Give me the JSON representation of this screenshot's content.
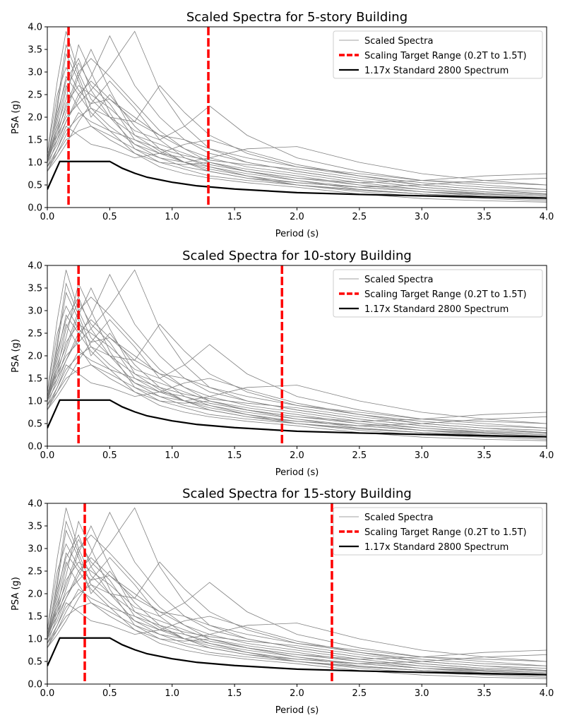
{
  "chart_data": [
    {
      "type": "line",
      "title": "Scaled Spectra for 5-story Building",
      "xlabel": "Period (s)",
      "ylabel": "PSA (g)",
      "xlim": [
        0,
        4
      ],
      "ylim": [
        0,
        4
      ],
      "xticks": [
        "0.0",
        "0.5",
        "1.0",
        "1.5",
        "2.0",
        "2.5",
        "3.0",
        "3.5",
        "4.0"
      ],
      "yticks": [
        "0.0",
        "0.5",
        "1.0",
        "1.5",
        "2.0",
        "2.5",
        "3.0",
        "3.5",
        "4.0"
      ],
      "target_range": [
        0.17,
        1.29
      ],
      "legend": [
        "Scaled Spectra",
        "Scaling Target Range (0.2T to 1.5T)",
        "1.17x Standard 2800 Spectrum"
      ],
      "legend_position": "top-right",
      "grid": false
    },
    {
      "type": "line",
      "title": "Scaled Spectra for 10-story Building",
      "xlabel": "Period (s)",
      "ylabel": "PSA (g)",
      "xlim": [
        0,
        4
      ],
      "ylim": [
        0,
        4
      ],
      "xticks": [
        "0.0",
        "0.5",
        "1.0",
        "1.5",
        "2.0",
        "2.5",
        "3.0",
        "3.5",
        "4.0"
      ],
      "yticks": [
        "0.0",
        "0.5",
        "1.0",
        "1.5",
        "2.0",
        "2.5",
        "3.0",
        "3.5",
        "4.0"
      ],
      "target_range": [
        0.25,
        1.88
      ],
      "legend": [
        "Scaled Spectra",
        "Scaling Target Range (0.2T to 1.5T)",
        "1.17x Standard 2800 Spectrum"
      ],
      "legend_position": "top-right",
      "grid": false
    },
    {
      "type": "line",
      "title": "Scaled Spectra for 15-story Building",
      "xlabel": "Period (s)",
      "ylabel": "PSA (g)",
      "xlim": [
        0,
        4
      ],
      "ylim": [
        0,
        4
      ],
      "xticks": [
        "0.0",
        "0.5",
        "1.0",
        "1.5",
        "2.0",
        "2.5",
        "3.0",
        "3.5",
        "4.0"
      ],
      "yticks": [
        "0.0",
        "0.5",
        "1.0",
        "1.5",
        "2.0",
        "2.5",
        "3.0",
        "3.5",
        "4.0"
      ],
      "target_range": [
        0.3,
        2.28
      ],
      "legend": [
        "Scaled Spectra",
        "Scaling Target Range (0.2T to 1.5T)",
        "1.17x Standard 2800 Spectrum"
      ],
      "legend_position": "top-right",
      "grid": false
    }
  ],
  "design_spectrum": {
    "x": [
      0,
      0.1,
      0.15,
      0.2,
      0.3,
      0.4,
      0.5,
      0.6,
      0.7,
      0.8,
      1.0,
      1.2,
      1.5,
      2.0,
      2.5,
      3.0,
      3.5,
      4.0
    ],
    "y": [
      0.4,
      1.02,
      1.02,
      1.02,
      1.02,
      1.02,
      1.02,
      0.87,
      0.76,
      0.67,
      0.56,
      0.48,
      0.41,
      0.33,
      0.29,
      0.26,
      0.23,
      0.21
    ]
  },
  "ground_motion_spectra": [
    {
      "x": [
        0,
        0.08,
        0.15,
        0.25,
        0.35,
        0.5,
        0.7,
        0.9,
        1.1,
        1.3,
        1.6,
        2.0,
        2.5,
        3.0,
        3.5,
        4.0
      ],
      "y": [
        1.0,
        1.7,
        2.6,
        3.2,
        2.7,
        2.3,
        1.5,
        1.2,
        1.1,
        0.9,
        0.75,
        0.6,
        0.45,
        0.35,
        0.3,
        0.25
      ]
    },
    {
      "x": [
        0,
        0.08,
        0.15,
        0.25,
        0.35,
        0.5,
        0.7,
        0.9,
        1.1,
        1.3,
        1.6,
        2.0,
        2.5,
        3.0,
        3.5,
        4.0
      ],
      "y": [
        1.1,
        2.2,
        3.4,
        2.8,
        2.0,
        2.5,
        1.8,
        1.3,
        1.0,
        0.85,
        0.7,
        0.5,
        0.4,
        0.3,
        0.25,
        0.2
      ]
    },
    {
      "x": [
        0,
        0.08,
        0.15,
        0.25,
        0.35,
        0.5,
        0.7,
        0.9,
        1.1,
        1.3,
        1.6,
        2.0,
        2.5,
        3.0,
        3.5,
        4.0
      ],
      "y": [
        0.9,
        1.5,
        2.1,
        2.9,
        3.5,
        2.6,
        1.6,
        1.4,
        1.2,
        1.0,
        0.8,
        0.65,
        0.5,
        0.4,
        0.32,
        0.28
      ]
    },
    {
      "x": [
        0,
        0.08,
        0.15,
        0.25,
        0.35,
        0.5,
        0.7,
        0.9,
        1.1,
        1.3,
        1.6,
        2.0,
        2.5,
        3.0,
        3.5,
        4.0
      ],
      "y": [
        1.2,
        2.8,
        3.9,
        3.0,
        2.4,
        2.0,
        1.4,
        1.1,
        0.9,
        0.8,
        0.65,
        0.55,
        0.45,
        0.35,
        0.28,
        0.22
      ]
    },
    {
      "x": [
        0,
        0.08,
        0.15,
        0.25,
        0.35,
        0.5,
        0.7,
        0.9,
        1.1,
        1.3,
        1.6,
        2.0,
        2.5,
        3.0,
        3.5,
        4.0
      ],
      "y": [
        1.0,
        1.4,
        1.9,
        2.4,
        2.9,
        3.8,
        2.7,
        2.0,
        1.5,
        1.2,
        1.0,
        0.8,
        0.6,
        0.45,
        0.35,
        0.3
      ]
    },
    {
      "x": [
        0,
        0.08,
        0.15,
        0.25,
        0.35,
        0.5,
        0.7,
        0.9,
        1.1,
        1.3,
        1.6,
        2.0,
        2.5,
        3.0,
        3.5,
        4.0
      ],
      "y": [
        0.8,
        1.3,
        1.7,
        2.0,
        2.2,
        2.0,
        1.9,
        2.7,
        2.1,
        1.6,
        1.2,
        0.9,
        0.7,
        0.5,
        0.4,
        0.35
      ]
    },
    {
      "x": [
        0,
        0.08,
        0.15,
        0.25,
        0.35,
        0.5,
        0.7,
        0.9,
        1.1,
        1.3,
        1.6,
        2.0,
        2.5,
        3.0,
        3.5,
        4.0
      ],
      "y": [
        1.0,
        1.6,
        2.3,
        2.7,
        2.5,
        2.2,
        1.7,
        1.5,
        1.8,
        2.25,
        1.6,
        1.1,
        0.8,
        0.6,
        0.5,
        0.4
      ]
    },
    {
      "x": [
        0,
        0.08,
        0.15,
        0.25,
        0.35,
        0.5,
        0.7,
        0.9,
        1.1,
        1.3,
        1.6,
        2.0,
        2.5,
        3.0,
        3.5,
        4.0
      ],
      "y": [
        0.9,
        1.2,
        1.5,
        1.7,
        1.8,
        1.6,
        1.3,
        1.1,
        1.0,
        1.1,
        1.3,
        1.35,
        1.0,
        0.75,
        0.6,
        0.5
      ]
    },
    {
      "x": [
        0,
        0.08,
        0.15,
        0.25,
        0.35,
        0.5,
        0.7,
        0.9,
        1.1,
        1.3,
        1.6,
        2.0,
        2.5,
        3.0,
        3.5,
        4.0
      ],
      "y": [
        1.1,
        2.0,
        2.9,
        2.5,
        2.1,
        1.7,
        1.2,
        0.9,
        0.75,
        0.65,
        0.55,
        0.45,
        0.3,
        0.2,
        0.15,
        0.12
      ]
    },
    {
      "x": [
        0,
        0.08,
        0.15,
        0.25,
        0.35,
        0.5,
        0.7,
        0.9,
        1.1,
        1.3,
        1.6,
        2.0,
        2.5,
        3.0,
        3.5,
        4.0
      ],
      "y": [
        1.0,
        1.8,
        2.4,
        3.6,
        3.0,
        2.1,
        1.3,
        1.0,
        0.85,
        0.7,
        0.6,
        0.5,
        0.35,
        0.25,
        0.2,
        0.15
      ]
    },
    {
      "x": [
        0,
        0.08,
        0.15,
        0.25,
        0.35,
        0.5,
        0.7,
        0.9,
        1.1,
        1.3,
        1.6,
        2.0,
        2.5,
        3.0,
        3.5,
        4.0
      ],
      "y": [
        1.2,
        2.5,
        3.1,
        2.6,
        2.3,
        2.4,
        2.0,
        1.6,
        1.3,
        1.1,
        0.9,
        0.75,
        0.55,
        0.4,
        0.3,
        0.25
      ]
    },
    {
      "x": [
        0,
        0.08,
        0.15,
        0.25,
        0.35,
        0.5,
        0.7,
        0.9,
        1.1,
        1.3,
        1.6,
        2.0,
        2.5,
        3.0,
        3.5,
        4.0
      ],
      "y": [
        0.8,
        1.1,
        1.4,
        1.9,
        2.3,
        2.8,
        2.2,
        1.5,
        1.1,
        0.95,
        0.8,
        0.65,
        0.55,
        0.6,
        0.7,
        0.75
      ]
    },
    {
      "x": [
        0,
        0.08,
        0.15,
        0.25,
        0.35,
        0.5,
        0.7,
        0.9,
        1.1,
        1.3,
        1.6,
        2.0,
        2.5,
        3.0,
        3.5,
        4.0
      ],
      "y": [
        1.0,
        1.9,
        2.7,
        2.2,
        1.8,
        1.5,
        1.2,
        1.0,
        0.95,
        1.0,
        0.85,
        0.7,
        0.5,
        0.35,
        0.25,
        0.2
      ]
    },
    {
      "x": [
        0,
        0.08,
        0.15,
        0.25,
        0.35,
        0.5,
        0.7,
        0.9,
        1.1,
        1.3,
        1.6,
        2.0,
        2.5,
        3.0,
        3.5,
        4.0
      ],
      "y": [
        1.1,
        1.7,
        2.2,
        3.0,
        3.3,
        2.9,
        2.3,
        1.7,
        1.3,
        1.0,
        0.8,
        0.6,
        0.4,
        0.3,
        0.22,
        0.18
      ]
    },
    {
      "x": [
        0,
        0.08,
        0.15,
        0.25,
        0.35,
        0.5,
        0.7,
        0.9,
        1.1,
        1.3,
        1.6,
        2.0,
        2.5,
        3.0,
        3.5,
        4.0
      ],
      "y": [
        0.9,
        1.3,
        1.8,
        1.6,
        1.4,
        1.3,
        1.1,
        1.2,
        1.4,
        1.5,
        1.25,
        0.95,
        0.7,
        0.55,
        0.45,
        0.4
      ]
    },
    {
      "x": [
        0,
        0.08,
        0.15,
        0.25,
        0.35,
        0.5,
        0.7,
        0.9,
        1.1,
        1.3,
        1.6,
        2.0,
        2.5,
        3.0,
        3.5,
        4.0
      ],
      "y": [
        1.0,
        2.3,
        3.6,
        2.9,
        2.2,
        1.8,
        1.4,
        1.2,
        1.0,
        0.9,
        0.7,
        0.55,
        0.45,
        0.5,
        0.6,
        0.65
      ]
    },
    {
      "x": [
        0,
        0.08,
        0.15,
        0.25,
        0.35,
        0.5,
        0.7,
        0.9,
        1.1,
        1.3,
        1.6,
        2.0,
        2.5,
        3.0,
        3.5,
        4.0
      ],
      "y": [
        1.2,
        1.6,
        2.0,
        2.3,
        2.6,
        3.1,
        3.9,
        2.6,
        1.8,
        1.3,
        1.0,
        0.8,
        0.6,
        0.45,
        0.35,
        0.3
      ]
    },
    {
      "x": [
        0,
        0.08,
        0.15,
        0.25,
        0.35,
        0.5,
        0.7,
        0.9,
        1.1,
        1.3,
        1.6,
        2.0,
        2.5,
        3.0,
        3.5,
        4.0
      ],
      "y": [
        0.8,
        1.2,
        1.6,
        2.1,
        1.9,
        1.7,
        1.5,
        1.3,
        1.15,
        1.05,
        0.95,
        0.85,
        0.65,
        0.5,
        0.4,
        0.3
      ]
    },
    {
      "x": [
        0,
        0.08,
        0.15,
        0.25,
        0.35,
        0.5,
        0.7,
        0.9,
        1.1,
        1.3,
        1.6,
        2.0,
        2.5,
        3.0,
        3.5,
        4.0
      ],
      "y": [
        1.0,
        2.1,
        2.8,
        3.3,
        2.6,
        2.0,
        1.6,
        1.25,
        1.0,
        0.8,
        0.65,
        0.5,
        0.38,
        0.3,
        0.24,
        0.2
      ]
    },
    {
      "x": [
        0,
        0.08,
        0.15,
        0.25,
        0.35,
        0.5,
        0.7,
        0.9,
        1.1,
        1.3,
        1.6,
        2.0,
        2.5,
        3.0,
        3.5,
        4.0
      ],
      "y": [
        1.1,
        1.5,
        1.9,
        2.5,
        2.8,
        2.4,
        1.9,
        1.6,
        1.5,
        1.3,
        1.1,
        0.9,
        0.75,
        0.6,
        0.55,
        0.5
      ]
    }
  ]
}
